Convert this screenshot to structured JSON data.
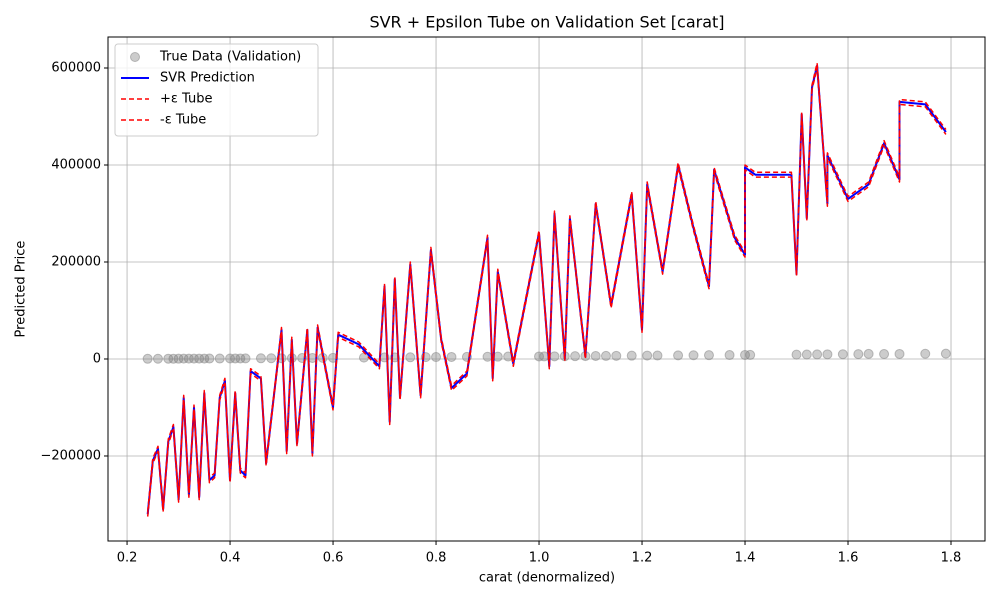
{
  "chart_data": {
    "type": "line",
    "title": "SVR + Epsilon Tube on Validation Set [carat]",
    "x_label": "carat (denormalized)",
    "y_label": "Predicted Price",
    "xlim": [
      0.163,
      1.866
    ],
    "ylim": [
      -375300,
      663900
    ],
    "xticks": [
      {
        "value": 0.2,
        "label": "0.2"
      },
      {
        "value": 0.4,
        "label": "0.4"
      },
      {
        "value": 0.6,
        "label": "0.6"
      },
      {
        "value": 0.8,
        "label": "0.8"
      },
      {
        "value": 1.0,
        "label": "1.0"
      },
      {
        "value": 1.2,
        "label": "1.2"
      },
      {
        "value": 1.4,
        "label": "1.4"
      },
      {
        "value": 1.6,
        "label": "1.6"
      },
      {
        "value": 1.8,
        "label": "1.8"
      }
    ],
    "yticks": [
      {
        "value": -200000,
        "label": "−200000"
      },
      0,
      200000,
      400000,
      600000
    ],
    "grid": true,
    "legend": "upper left",
    "x": [
      0.24,
      0.25,
      0.26,
      0.27,
      0.28,
      0.29,
      0.3,
      0.31,
      0.32,
      0.33,
      0.34,
      0.35,
      0.36,
      0.37,
      0.38,
      0.39,
      0.4,
      0.41,
      0.42,
      0.43,
      0.44,
      0.46,
      0.47,
      0.5,
      0.51,
      0.52,
      0.53,
      0.55,
      0.56,
      0.57,
      0.6,
      0.61,
      0.65,
      0.69,
      0.7,
      0.71,
      0.72,
      0.73,
      0.75,
      0.77,
      0.79,
      0.81,
      0.83,
      0.86,
      0.9,
      0.91,
      0.92,
      0.95,
      1.0,
      1.02,
      1.03,
      1.05,
      1.06,
      1.09,
      1.11,
      1.14,
      1.18,
      1.2,
      1.21,
      1.24,
      1.27,
      1.3,
      1.33,
      1.34,
      1.38,
      1.4,
      1.4,
      1.42,
      1.49,
      1.5,
      1.51,
      1.52,
      1.53,
      1.54,
      1.56,
      1.56,
      1.6,
      1.64,
      1.67,
      1.7,
      1.7,
      1.75,
      1.79
    ],
    "series": [
      {
        "name": "True Data (Validation)",
        "kind": "scatter",
        "color": "#808080",
        "x": [
          0.24,
          0.26,
          0.28,
          0.29,
          0.3,
          0.31,
          0.32,
          0.33,
          0.34,
          0.35,
          0.36,
          0.38,
          0.4,
          0.41,
          0.42,
          0.43,
          0.46,
          0.48,
          0.5,
          0.52,
          0.54,
          0.56,
          0.58,
          0.6,
          0.66,
          0.7,
          0.72,
          0.75,
          0.78,
          0.8,
          0.83,
          0.86,
          0.9,
          0.92,
          0.94,
          1.0,
          1.01,
          1.03,
          1.05,
          1.07,
          1.09,
          1.11,
          1.13,
          1.15,
          1.18,
          1.21,
          1.23,
          1.27,
          1.3,
          1.33,
          1.37,
          1.4,
          1.41,
          1.5,
          1.52,
          1.54,
          1.56,
          1.59,
          1.62,
          1.64,
          1.67,
          1.7,
          1.75,
          1.79
        ],
        "values": [
          400,
          500,
          550,
          600,
          650,
          700,
          750,
          700,
          800,
          850,
          900,
          900,
          1000,
          1100,
          1100,
          1200,
          1400,
          1500,
          1600,
          1800,
          2000,
          2100,
          2300,
          2400,
          2800,
          3200,
          3300,
          3500,
          3800,
          4000,
          4200,
          4300,
          4600,
          4800,
          5000,
          5200,
          5300,
          5500,
          5700,
          5800,
          6000,
          6200,
          6300,
          6500,
          6800,
          7000,
          7100,
          7400,
          7700,
          7900,
          8100,
          8300,
          8400,
          9000,
          9200,
          9400,
          9600,
          9800,
          10000,
          10500,
          10200,
          10400,
          10800,
          11000
        ]
      },
      {
        "name": "SVR Prediction",
        "kind": "line",
        "color": "#0000ff",
        "dash": "solid",
        "values": [
          -320000,
          -210000,
          -185000,
          -310000,
          -170000,
          -140000,
          -290000,
          -80000,
          -280000,
          -100000,
          -285000,
          -70000,
          -250000,
          -240000,
          -80000,
          -45000,
          -250000,
          -70000,
          -230000,
          -240000,
          -25000,
          -40000,
          -215000,
          60000,
          -190000,
          40000,
          -175000,
          60000,
          -195000,
          65000,
          -100000,
          50000,
          30000,
          -15000,
          150000,
          -130000,
          165000,
          -80000,
          195000,
          -75000,
          225000,
          40000,
          -60000,
          -30000,
          250000,
          -40000,
          180000,
          -10000,
          260000,
          -15000,
          300000,
          0,
          290000,
          5000,
          320000,
          110000,
          340000,
          60000,
          360000,
          180000,
          400000,
          270000,
          150000,
          390000,
          250000,
          215000,
          395000,
          380000,
          380000,
          175000,
          505000,
          290000,
          560000,
          605000,
          320000,
          420000,
          330000,
          360000,
          445000,
          370000,
          530000,
          525000,
          468000
        ]
      },
      {
        "name": "+ε Tube",
        "kind": "line",
        "color": "#ff0000",
        "dash": "dashed",
        "values": [
          -315000,
          -205000,
          -180000,
          -305000,
          -165000,
          -135000,
          -285000,
          -75000,
          -275000,
          -95000,
          -280000,
          -65000,
          -245000,
          -235000,
          -75000,
          -40000,
          -245000,
          -65000,
          -225000,
          -235000,
          -20000,
          -35000,
          -210000,
          65000,
          -185000,
          45000,
          -170000,
          65000,
          -190000,
          70000,
          -95000,
          55000,
          35000,
          -10000,
          155000,
          -125000,
          170000,
          -75000,
          200000,
          -70000,
          230000,
          45000,
          -55000,
          -25000,
          255000,
          -35000,
          185000,
          -5000,
          265000,
          -10000,
          305000,
          5000,
          295000,
          10000,
          325000,
          115000,
          345000,
          65000,
          365000,
          185000,
          405000,
          275000,
          155000,
          395000,
          255000,
          220000,
          400000,
          385000,
          385000,
          180000,
          510000,
          295000,
          565000,
          610000,
          325000,
          425000,
          335000,
          365000,
          450000,
          375000,
          535000,
          530000,
          473000
        ]
      },
      {
        "name": "-ε Tube",
        "kind": "line",
        "color": "#ff0000",
        "dash": "dashed",
        "values": [
          -325000,
          -215000,
          -190000,
          -315000,
          -175000,
          -145000,
          -295000,
          -85000,
          -285000,
          -105000,
          -290000,
          -75000,
          -255000,
          -245000,
          -85000,
          -50000,
          -255000,
          -75000,
          -235000,
          -245000,
          -30000,
          -45000,
          -220000,
          55000,
          -195000,
          35000,
          -180000,
          55000,
          -200000,
          60000,
          -105000,
          45000,
          25000,
          -20000,
          145000,
          -135000,
          160000,
          -85000,
          190000,
          -80000,
          220000,
          35000,
          -65000,
          -35000,
          245000,
          -45000,
          175000,
          -15000,
          255000,
          -20000,
          295000,
          -5000,
          285000,
          0,
          315000,
          105000,
          335000,
          55000,
          355000,
          175000,
          395000,
          265000,
          145000,
          385000,
          245000,
          210000,
          390000,
          375000,
          375000,
          170000,
          500000,
          285000,
          555000,
          600000,
          315000,
          415000,
          325000,
          355000,
          440000,
          365000,
          525000,
          520000,
          463000
        ]
      }
    ]
  }
}
